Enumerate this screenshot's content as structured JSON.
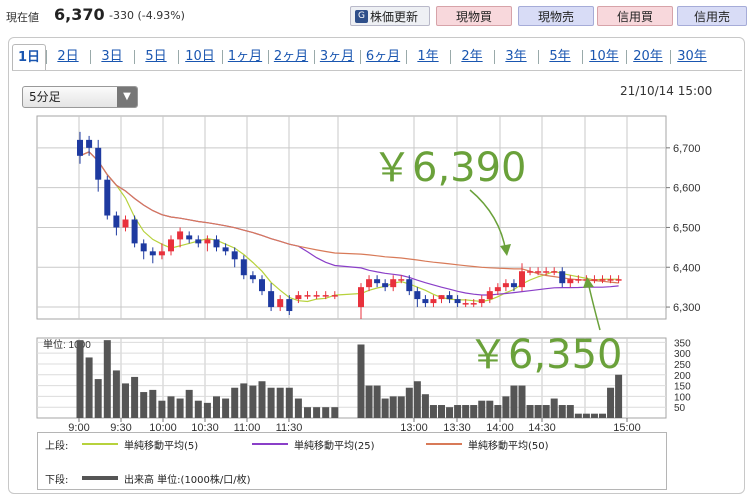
{
  "header": {
    "price_label": "現在値",
    "price_value": "6,370",
    "price_change": "-330 (-4.93%)",
    "buttons": [
      {
        "label": "株価更新",
        "icon": "refresh-icon"
      },
      {
        "label": "現物買"
      },
      {
        "label": "現物売"
      },
      {
        "label": "信用買"
      },
      {
        "label": "信用売"
      }
    ]
  },
  "tabs": [
    "1日",
    "2日",
    "3日",
    "5日",
    "10日",
    "1ヶ月",
    "2ヶ月",
    "3ヶ月",
    "6ヶ月",
    "1年",
    "2年",
    "3年",
    "5年",
    "10年",
    "20年",
    "30年"
  ],
  "active_tab": "1日",
  "interval_select": {
    "value": "5分足"
  },
  "datetime": "21/10/14 15:00",
  "annotations": {
    "high": "￥6,390",
    "low": "￥6,350"
  },
  "legend": {
    "upper_label": "上段:",
    "lower_label": "下段:",
    "ma5": "単純移動平均(5)",
    "ma25": "単純移動平均(25)",
    "ma50": "単純移動平均(50)",
    "volume": "出来高 単位:(1000株/口/枚)"
  },
  "colors": {
    "up": "#e8313c",
    "down": "#1e3aa0",
    "ma5": "#b7d23c",
    "ma25": "#8a3fc8",
    "ma50": "#d87a58",
    "volume": "#555555",
    "annotation": "#6aa13a"
  },
  "chart_data": {
    "type": "candlestick",
    "price_axis": {
      "ticks": [
        6700,
        6600,
        6500,
        6400,
        6300
      ],
      "range": [
        6270,
        6780
      ]
    },
    "volume_axis": {
      "label": "単位: 1000",
      "ticks": [
        350,
        300,
        250,
        200,
        150,
        100,
        50
      ],
      "range": [
        0,
        370
      ]
    },
    "time_ticks": [
      "9:00",
      "9:30",
      "10:00",
      "10:30",
      "11:00",
      "11:30",
      "13:00",
      "13:30",
      "14:00",
      "14:30",
      "15:00"
    ],
    "morning": [
      {
        "o": 6720,
        "h": 6740,
        "l": 6660,
        "c": 6680,
        "v": 360
      },
      {
        "o": 6720,
        "h": 6730,
        "l": 6680,
        "c": 6700,
        "v": 280
      },
      {
        "o": 6700,
        "h": 6720,
        "l": 6590,
        "c": 6620,
        "v": 180
      },
      {
        "o": 6620,
        "h": 6630,
        "l": 6520,
        "c": 6530,
        "v": 360
      },
      {
        "o": 6530,
        "h": 6540,
        "l": 6480,
        "c": 6500,
        "v": 220
      },
      {
        "o": 6500,
        "h": 6530,
        "l": 6490,
        "c": 6520,
        "v": 160
      },
      {
        "o": 6520,
        "h": 6530,
        "l": 6450,
        "c": 6460,
        "v": 190
      },
      {
        "o": 6460,
        "h": 6470,
        "l": 6420,
        "c": 6440,
        "v": 120
      },
      {
        "o": 6440,
        "h": 6450,
        "l": 6410,
        "c": 6430,
        "v": 130
      },
      {
        "o": 6430,
        "h": 6460,
        "l": 6420,
        "c": 6440,
        "v": 80
      },
      {
        "o": 6440,
        "h": 6480,
        "l": 6430,
        "c": 6470,
        "v": 100
      },
      {
        "o": 6470,
        "h": 6500,
        "l": 6450,
        "c": 6490,
        "v": 90
      },
      {
        "o": 6480,
        "h": 6490,
        "l": 6460,
        "c": 6470,
        "v": 130
      },
      {
        "o": 6470,
        "h": 6480,
        "l": 6450,
        "c": 6460,
        "v": 80
      },
      {
        "o": 6460,
        "h": 6480,
        "l": 6440,
        "c": 6470,
        "v": 70
      },
      {
        "o": 6470,
        "h": 6480,
        "l": 6440,
        "c": 6450,
        "v": 100
      },
      {
        "o": 6450,
        "h": 6460,
        "l": 6430,
        "c": 6440,
        "v": 90
      },
      {
        "o": 6440,
        "h": 6450,
        "l": 6400,
        "c": 6420,
        "v": 140
      },
      {
        "o": 6420,
        "h": 6430,
        "l": 6370,
        "c": 6380,
        "v": 160
      },
      {
        "o": 6380,
        "h": 6390,
        "l": 6360,
        "c": 6370,
        "v": 150
      },
      {
        "o": 6370,
        "h": 6380,
        "l": 6330,
        "c": 6340,
        "v": 170
      },
      {
        "o": 6340,
        "h": 6360,
        "l": 6290,
        "c": 6300,
        "v": 140
      },
      {
        "o": 6300,
        "h": 6330,
        "l": 6290,
        "c": 6320,
        "v": 140
      },
      {
        "o": 6320,
        "h": 6330,
        "l": 6280,
        "c": 6290,
        "v": 140
      },
      {
        "o": 6320,
        "h": 6340,
        "l": 6310,
        "c": 6330,
        "v": 90
      },
      {
        "o": 6330,
        "h": 6340,
        "l": 6320,
        "c": 6330,
        "v": 50
      },
      {
        "o": 6330,
        "h": 6340,
        "l": 6320,
        "c": 6330,
        "v": 50
      },
      {
        "o": 6330,
        "h": 6340,
        "l": 6320,
        "c": 6330,
        "v": 50
      },
      {
        "o": 6330,
        "h": 6340,
        "l": 6320,
        "c": 6330,
        "v": 50
      }
    ],
    "afternoon": [
      {
        "o": 6300,
        "h": 6360,
        "l": 6270,
        "c": 6350,
        "v": 340
      },
      {
        "o": 6350,
        "h": 6380,
        "l": 6340,
        "c": 6370,
        "v": 150
      },
      {
        "o": 6370,
        "h": 6380,
        "l": 6350,
        "c": 6360,
        "v": 150
      },
      {
        "o": 6360,
        "h": 6370,
        "l": 6340,
        "c": 6350,
        "v": 90
      },
      {
        "o": 6350,
        "h": 6380,
        "l": 6340,
        "c": 6370,
        "v": 100
      },
      {
        "o": 6370,
        "h": 6380,
        "l": 6360,
        "c": 6370,
        "v": 100
      },
      {
        "o": 6370,
        "h": 6380,
        "l": 6330,
        "c": 6340,
        "v": 140
      },
      {
        "o": 6340,
        "h": 6350,
        "l": 6300,
        "c": 6320,
        "v": 170
      },
      {
        "o": 6320,
        "h": 6330,
        "l": 6300,
        "c": 6310,
        "v": 110
      },
      {
        "o": 6310,
        "h": 6330,
        "l": 6300,
        "c": 6320,
        "v": 60
      },
      {
        "o": 6320,
        "h": 6330,
        "l": 6310,
        "c": 6330,
        "v": 60
      },
      {
        "o": 6330,
        "h": 6340,
        "l": 6310,
        "c": 6320,
        "v": 50
      },
      {
        "o": 6320,
        "h": 6330,
        "l": 6300,
        "c": 6310,
        "v": 60
      },
      {
        "o": 6310,
        "h": 6320,
        "l": 6300,
        "c": 6310,
        "v": 60
      },
      {
        "o": 6310,
        "h": 6320,
        "l": 6300,
        "c": 6310,
        "v": 60
      },
      {
        "o": 6310,
        "h": 6330,
        "l": 6300,
        "c": 6320,
        "v": 80
      },
      {
        "o": 6320,
        "h": 6350,
        "l": 6310,
        "c": 6340,
        "v": 80
      },
      {
        "o": 6340,
        "h": 6360,
        "l": 6330,
        "c": 6350,
        "v": 60
      },
      {
        "o": 6350,
        "h": 6370,
        "l": 6340,
        "c": 6360,
        "v": 100
      },
      {
        "o": 6360,
        "h": 6370,
        "l": 6340,
        "c": 6350,
        "v": 150
      },
      {
        "o": 6350,
        "h": 6410,
        "l": 6340,
        "c": 6390,
        "v": 150
      },
      {
        "o": 6390,
        "h": 6400,
        "l": 6380,
        "c": 6390,
        "v": 60
      },
      {
        "o": 6390,
        "h": 6400,
        "l": 6380,
        "c": 6390,
        "v": 60
      },
      {
        "o": 6390,
        "h": 6400,
        "l": 6380,
        "c": 6390,
        "v": 60
      },
      {
        "o": 6390,
        "h": 6400,
        "l": 6380,
        "c": 6390,
        "v": 90
      },
      {
        "o": 6390,
        "h": 6400,
        "l": 6350,
        "c": 6360,
        "v": 60
      },
      {
        "o": 6360,
        "h": 6380,
        "l": 6350,
        "c": 6370,
        "v": 60
      },
      {
        "o": 6370,
        "h": 6380,
        "l": 6360,
        "c": 6370,
        "v": 20
      },
      {
        "o": 6370,
        "h": 6380,
        "l": 6360,
        "c": 6370,
        "v": 20
      },
      {
        "o": 6370,
        "h": 6380,
        "l": 6360,
        "c": 6370,
        "v": 20
      },
      {
        "o": 6370,
        "h": 6380,
        "l": 6360,
        "c": 6370,
        "v": 20
      },
      {
        "o": 6370,
        "h": 6380,
        "l": 6360,
        "c": 6370,
        "v": 140
      },
      {
        "o": 6370,
        "h": 6380,
        "l": 6360,
        "c": 6370,
        "v": 200
      }
    ]
  }
}
